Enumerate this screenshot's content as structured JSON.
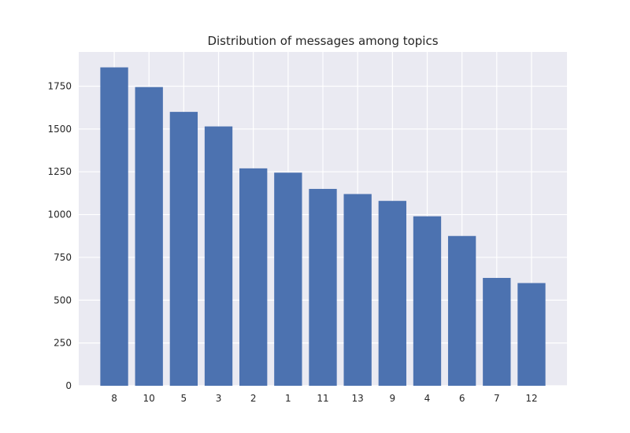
{
  "chart_data": {
    "type": "bar",
    "title": "Distribution of messages among topics",
    "xlabel": "",
    "ylabel": "",
    "categories": [
      "8",
      "10",
      "5",
      "3",
      "2",
      "1",
      "11",
      "13",
      "9",
      "4",
      "6",
      "7",
      "12"
    ],
    "values": [
      1860,
      1745,
      1600,
      1515,
      1270,
      1245,
      1150,
      1120,
      1080,
      990,
      875,
      630,
      600
    ],
    "ylim": [
      0,
      1950
    ],
    "yticks": [
      0,
      250,
      500,
      750,
      1000,
      1250,
      1500,
      1750
    ],
    "grid": true,
    "legend": "none",
    "colors": {
      "bar": "#4c72b0",
      "plot_background": "#eaeaf2",
      "grid": "#ffffff",
      "text": "#262626"
    }
  }
}
